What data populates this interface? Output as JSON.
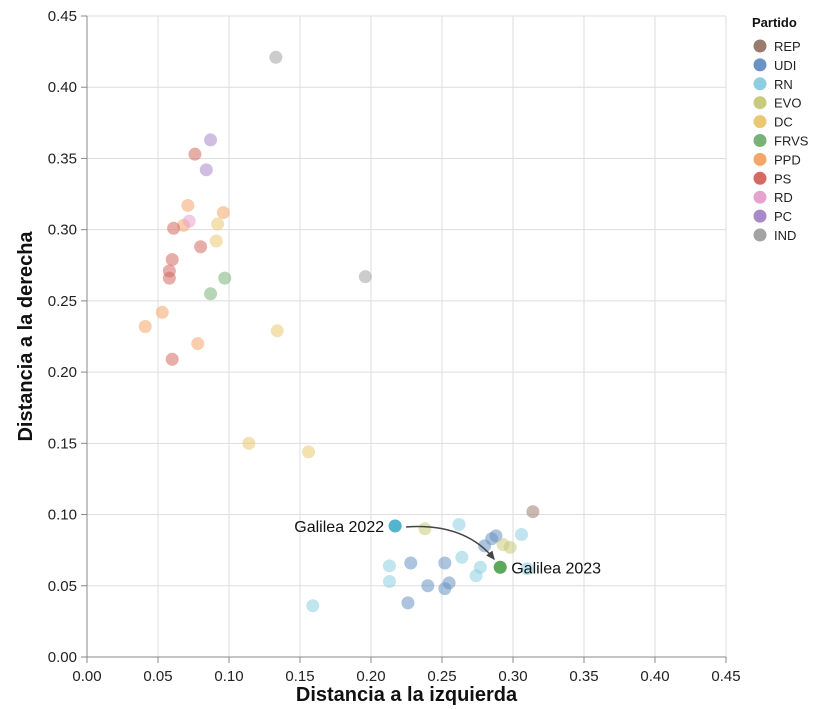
{
  "chart_data": {
    "type": "scatter",
    "xlabel": "Distancia a la izquierda",
    "ylabel": "Distancia a la derecha",
    "xlim": [
      0.0,
      0.45
    ],
    "ylim": [
      0.0,
      0.45
    ],
    "x_ticks": [
      "0.00",
      "0.05",
      "0.10",
      "0.15",
      "0.20",
      "0.25",
      "0.30",
      "0.35",
      "0.40",
      "0.45"
    ],
    "y_ticks": [
      "0.00",
      "0.05",
      "0.10",
      "0.15",
      "0.20",
      "0.25",
      "0.30",
      "0.35",
      "0.40",
      "0.45"
    ],
    "grid": true,
    "legend": {
      "title": "Partido",
      "placement": "right",
      "entries": [
        {
          "name": "REP",
          "color": "#9c7b6f"
        },
        {
          "name": "UDI",
          "color": "#6a93c3"
        },
        {
          "name": "RN",
          "color": "#8ccfe0"
        },
        {
          "name": "EVO",
          "color": "#c9ca7b"
        },
        {
          "name": "DC",
          "color": "#eac873"
        },
        {
          "name": "FRVS",
          "color": "#78b278"
        },
        {
          "name": "PPD",
          "color": "#f3a66a"
        },
        {
          "name": "PS",
          "color": "#d46a63"
        },
        {
          "name": "RD",
          "color": "#e5a3cd"
        },
        {
          "name": "PC",
          "color": "#a889c9"
        },
        {
          "name": "IND",
          "color": "#a3a3a3"
        }
      ]
    },
    "series": [
      {
        "name": "REP",
        "points": [
          [
            0.314,
            0.102
          ]
        ]
      },
      {
        "name": "UDI",
        "points": [
          [
            0.217,
            0.092
          ],
          [
            0.226,
            0.038
          ],
          [
            0.228,
            0.066
          ],
          [
            0.24,
            0.05
          ],
          [
            0.252,
            0.048
          ],
          [
            0.252,
            0.066
          ],
          [
            0.255,
            0.052
          ],
          [
            0.28,
            0.078
          ],
          [
            0.285,
            0.083
          ],
          [
            0.288,
            0.085
          ]
        ]
      },
      {
        "name": "RN",
        "points": [
          [
            0.159,
            0.036
          ],
          [
            0.213,
            0.053
          ],
          [
            0.213,
            0.064
          ],
          [
            0.262,
            0.093
          ],
          [
            0.264,
            0.07
          ],
          [
            0.274,
            0.057
          ],
          [
            0.277,
            0.063
          ],
          [
            0.306,
            0.086
          ],
          [
            0.31,
            0.062
          ]
        ]
      },
      {
        "name": "EVO",
        "points": [
          [
            0.238,
            0.09
          ],
          [
            0.293,
            0.079
          ],
          [
            0.298,
            0.077
          ]
        ]
      },
      {
        "name": "DC",
        "points": [
          [
            0.091,
            0.292
          ],
          [
            0.092,
            0.304
          ],
          [
            0.114,
            0.15
          ],
          [
            0.134,
            0.229
          ],
          [
            0.156,
            0.144
          ]
        ]
      },
      {
        "name": "FRVS",
        "points": [
          [
            0.087,
            0.255
          ],
          [
            0.097,
            0.266
          ],
          [
            0.291,
            0.063
          ]
        ]
      },
      {
        "name": "PPD",
        "points": [
          [
            0.041,
            0.232
          ],
          [
            0.053,
            0.242
          ],
          [
            0.068,
            0.303
          ],
          [
            0.071,
            0.317
          ],
          [
            0.078,
            0.22
          ],
          [
            0.096,
            0.312
          ]
        ]
      },
      {
        "name": "PS",
        "points": [
          [
            0.058,
            0.266
          ],
          [
            0.058,
            0.271
          ],
          [
            0.06,
            0.279
          ],
          [
            0.06,
            0.209
          ],
          [
            0.061,
            0.301
          ],
          [
            0.076,
            0.353
          ],
          [
            0.08,
            0.288
          ]
        ]
      },
      {
        "name": "RD",
        "points": [
          [
            0.072,
            0.306
          ]
        ]
      },
      {
        "name": "PC",
        "points": [
          [
            0.084,
            0.342
          ],
          [
            0.087,
            0.363
          ]
        ]
      },
      {
        "name": "IND",
        "points": [
          [
            0.133,
            0.421
          ],
          [
            0.196,
            0.267
          ]
        ]
      }
    ],
    "annotations": [
      {
        "text": "Galilea 2022",
        "x": 0.217,
        "y": 0.092
      },
      {
        "text": "Galilea 2023",
        "x": 0.291,
        "y": 0.063
      }
    ]
  }
}
